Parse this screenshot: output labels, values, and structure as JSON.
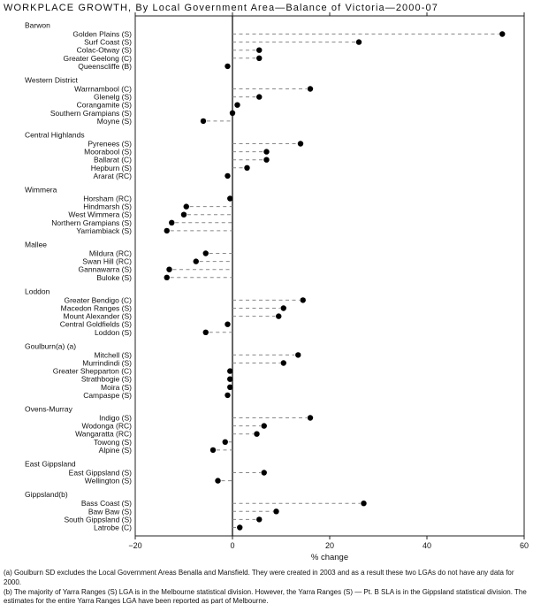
{
  "title": "WORKPLACE GROWTH, By Local Government Area—Balance of Victoria—2000-07",
  "chart_data": {
    "type": "scatter",
    "subtype": "horizontal-dot-plot",
    "xlabel": "% change",
    "xlim": [
      -20,
      60
    ],
    "x_ticks": [
      -20,
      0,
      20,
      40,
      60
    ],
    "zero_line": true,
    "grid": false,
    "dot_color": "#000000",
    "dash_color": "#888888",
    "groups": [
      {
        "name": "Barwon",
        "items": [
          {
            "label": "Golden Plains (S)",
            "value": 55.5
          },
          {
            "label": "Surf Coast (S)",
            "value": 26
          },
          {
            "label": "Colac-Otway (S)",
            "value": 5.5
          },
          {
            "label": "Greater Geelong (C)",
            "value": 5.5
          },
          {
            "label": "Queenscliffe (B)",
            "value": -1
          }
        ]
      },
      {
        "name": "Western District",
        "items": [
          {
            "label": "Warrnambool (C)",
            "value": 16
          },
          {
            "label": "Glenelg (S)",
            "value": 5.5
          },
          {
            "label": "Corangamite (S)",
            "value": 1
          },
          {
            "label": "Southern Grampians (S)",
            "value": 0
          },
          {
            "label": "Moyne (S)",
            "value": -6
          }
        ]
      },
      {
        "name": "Central Highlands",
        "items": [
          {
            "label": "Pyrenees (S)",
            "value": 14
          },
          {
            "label": "Moorabool (S)",
            "value": 7
          },
          {
            "label": "Ballarat (C)",
            "value": 7
          },
          {
            "label": "Hepburn (S)",
            "value": 3
          },
          {
            "label": "Ararat (RC)",
            "value": -1
          }
        ]
      },
      {
        "name": "Wimmera",
        "items": [
          {
            "label": "Horsham (RC)",
            "value": -0.5
          },
          {
            "label": "Hindmarsh (S)",
            "value": -9.5
          },
          {
            "label": "West Wimmera (S)",
            "value": -10
          },
          {
            "label": "Northern Grampians (S)",
            "value": -12.5
          },
          {
            "label": "Yarriambiack (S)",
            "value": -13.5
          }
        ]
      },
      {
        "name": "Mallee",
        "items": [
          {
            "label": "Mildura (RC)",
            "value": -5.5
          },
          {
            "label": "Swan Hill (RC)",
            "value": -7.5
          },
          {
            "label": "Gannawarra (S)",
            "value": -13
          },
          {
            "label": "Buloke (S)",
            "value": -13.5
          }
        ]
      },
      {
        "name": "Loddon",
        "items": [
          {
            "label": "Greater Bendigo (C)",
            "value": 14.5
          },
          {
            "label": "Macedon Ranges (S)",
            "value": 10.5
          },
          {
            "label": "Mount Alexander (S)",
            "value": 9.5
          },
          {
            "label": "Central Goldfields (S)",
            "value": -1
          },
          {
            "label": "Loddon (S)",
            "value": -5.5
          }
        ]
      },
      {
        "name": "Goulburn(a) (a)",
        "items": [
          {
            "label": "Mitchell (S)",
            "value": 13.5
          },
          {
            "label": "Murrindindi (S)",
            "value": 10.5
          },
          {
            "label": "Greater Shepparton (C)",
            "value": -0.5
          },
          {
            "label": "Strathbogie (S)",
            "value": -0.5
          },
          {
            "label": "Moira (S)",
            "value": -0.5
          },
          {
            "label": "Campaspe (S)",
            "value": -1
          }
        ]
      },
      {
        "name": "Ovens-Murray",
        "items": [
          {
            "label": "Indigo (S)",
            "value": 16
          },
          {
            "label": "Wodonga (RC)",
            "value": 6.5
          },
          {
            "label": "Wangaratta (RC)",
            "value": 5
          },
          {
            "label": "Towong (S)",
            "value": -1.5
          },
          {
            "label": "Alpine (S)",
            "value": -4
          }
        ]
      },
      {
        "name": "East Gippsland",
        "items": [
          {
            "label": "East Gippsland (S)",
            "value": 6.5
          },
          {
            "label": "Wellington (S)",
            "value": -3
          }
        ]
      },
      {
        "name": "Gippsland(b)",
        "items": [
          {
            "label": "Bass Coast (S)",
            "value": 27
          },
          {
            "label": "Baw Baw (S)",
            "value": 9
          },
          {
            "label": "South Gippsland (S)",
            "value": 5.5
          },
          {
            "label": "Latrobe (C)",
            "value": 1.5
          }
        ]
      }
    ]
  },
  "footnotes": [
    "(a) Goulburn SD excludes the Local Government Areas Benalla and Mansfield. They were created in 2003 and as a result these two LGAs do not have any data for 2000.",
    "(b) The majority of Yarra Ranges (S) LGA is in the Melbourne statistical division. However, the Yarra Ranges (S) — Pt. B SLA is in the Gippsland statistical division. The estimates for the entire Yarra Ranges LGA have been reported as part of Melbourne."
  ]
}
